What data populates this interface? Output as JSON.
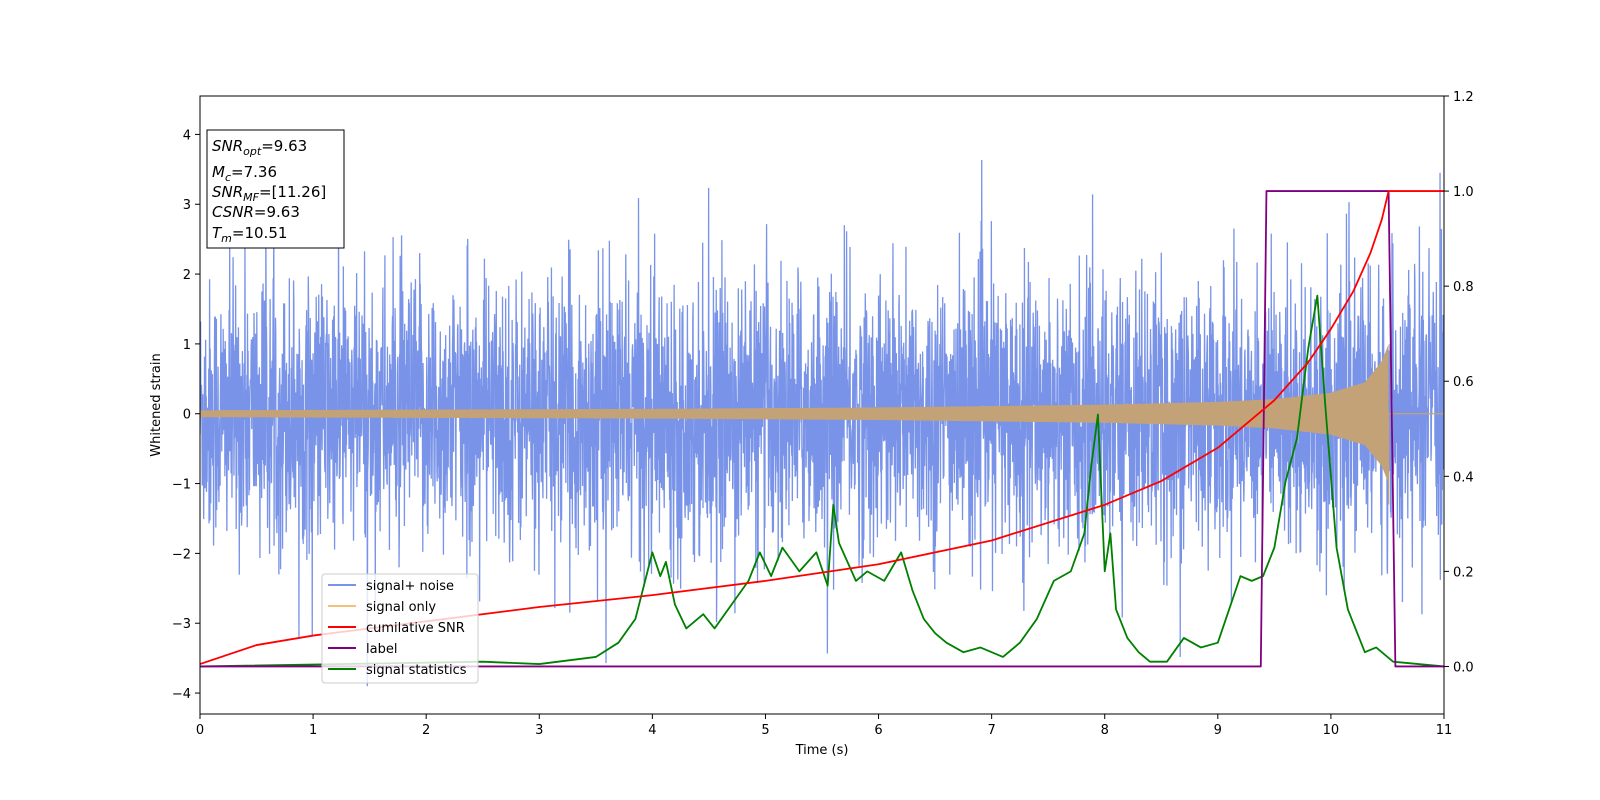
{
  "chart_data": {
    "type": "line",
    "xlabel": "Time (s)",
    "ylabel": "Whitened strain",
    "xlim": [
      0,
      11
    ],
    "ylim_left": [
      -4.3,
      4.55
    ],
    "ylim_right": [
      -0.1,
      1.2
    ],
    "x_ticks": [
      "0",
      "1",
      "2",
      "3",
      "4",
      "5",
      "6",
      "7",
      "8",
      "9",
      "10",
      "11"
    ],
    "y_left_ticks": [
      "−4",
      "−3",
      "−2",
      "−1",
      "0",
      "1",
      "2",
      "3",
      "4"
    ],
    "y_right_ticks": [
      "0.0",
      "0.2",
      "0.4",
      "0.6",
      "0.8",
      "1.0",
      "1.2"
    ],
    "legend_position": "lower-left",
    "legend": [
      {
        "label": "signal+ noise",
        "color": "#7893e8"
      },
      {
        "label": "signal only",
        "color": "#f5c07a"
      },
      {
        "label": "cumilative SNR",
        "color": "#ff0000"
      },
      {
        "label": "label",
        "color": "#800080"
      },
      {
        "label": "signal statistics",
        "color": "#008000"
      }
    ],
    "info_box": {
      "snr_opt": {
        "name": "SNR",
        "sub": "opt",
        "value": "=9.63"
      },
      "mc": {
        "name": "M",
        "sub": "c",
        "value": "=7.36"
      },
      "snr_mf": {
        "name": "SNR",
        "sub": "MF",
        "value": "=[11.26]"
      },
      "csnr": {
        "name": "CSNR",
        "value": "=9.63"
      },
      "tm": {
        "name": "T",
        "sub": "m",
        "value": "=10.51"
      }
    },
    "series": [
      {
        "name": "signal+ noise",
        "axis": "left",
        "description_values": "white-noise strain, approx range -3.9 to 4.2"
      },
      {
        "name": "signal only",
        "axis": "left",
        "envelope": {
          "t": [
            0,
            2,
            4,
            6,
            8,
            9,
            9.5,
            10,
            10.3,
            10.45,
            10.51
          ],
          "amp": [
            0.05,
            0.06,
            0.07,
            0.09,
            0.13,
            0.17,
            0.21,
            0.3,
            0.45,
            0.75,
            1.0
          ]
        }
      },
      {
        "name": "cumilative SNR",
        "axis": "right",
        "x": [
          0,
          0.5,
          1,
          2,
          3,
          4,
          5,
          6,
          7,
          8,
          8.5,
          9,
          9.5,
          9.8,
          10,
          10.2,
          10.35,
          10.45,
          10.51,
          11
        ],
        "y": [
          0.005,
          0.045,
          0.065,
          0.095,
          0.125,
          0.15,
          0.18,
          0.215,
          0.265,
          0.34,
          0.39,
          0.46,
          0.56,
          0.64,
          0.71,
          0.79,
          0.87,
          0.94,
          1.0,
          1.0
        ]
      },
      {
        "name": "label",
        "axis": "right",
        "x": [
          0,
          9.38,
          9.43,
          10.51,
          10.57,
          11
        ],
        "y": [
          0,
          0,
          1.0,
          1.0,
          0,
          0
        ]
      },
      {
        "name": "signal statistics",
        "axis": "right",
        "x": [
          0,
          2.5,
          3,
          3.5,
          3.7,
          3.85,
          4.0,
          4.07,
          4.12,
          4.2,
          4.3,
          4.45,
          4.55,
          4.7,
          4.85,
          4.95,
          5.05,
          5.15,
          5.3,
          5.45,
          5.55,
          5.6,
          5.65,
          5.8,
          5.9,
          6.05,
          6.2,
          6.3,
          6.4,
          6.5,
          6.6,
          6.75,
          6.9,
          7.1,
          7.25,
          7.4,
          7.55,
          7.7,
          7.82,
          7.88,
          7.94,
          8.0,
          8.05,
          8.1,
          8.2,
          8.3,
          8.4,
          8.55,
          8.7,
          8.85,
          9.0,
          9.1,
          9.2,
          9.3,
          9.4,
          9.5,
          9.6,
          9.7,
          9.8,
          9.88,
          9.95,
          10.05,
          10.15,
          10.3,
          10.4,
          10.55,
          11
        ],
        "y": [
          0.0,
          0.01,
          0.005,
          0.02,
          0.05,
          0.1,
          0.24,
          0.19,
          0.22,
          0.13,
          0.08,
          0.11,
          0.08,
          0.13,
          0.18,
          0.24,
          0.19,
          0.25,
          0.2,
          0.24,
          0.17,
          0.34,
          0.26,
          0.18,
          0.2,
          0.18,
          0.24,
          0.16,
          0.1,
          0.07,
          0.05,
          0.03,
          0.04,
          0.02,
          0.05,
          0.1,
          0.18,
          0.2,
          0.28,
          0.42,
          0.53,
          0.2,
          0.28,
          0.12,
          0.06,
          0.03,
          0.01,
          0.01,
          0.06,
          0.04,
          0.05,
          0.12,
          0.19,
          0.18,
          0.19,
          0.25,
          0.39,
          0.48,
          0.67,
          0.78,
          0.55,
          0.25,
          0.12,
          0.03,
          0.04,
          0.01,
          0.0
        ]
      }
    ]
  }
}
